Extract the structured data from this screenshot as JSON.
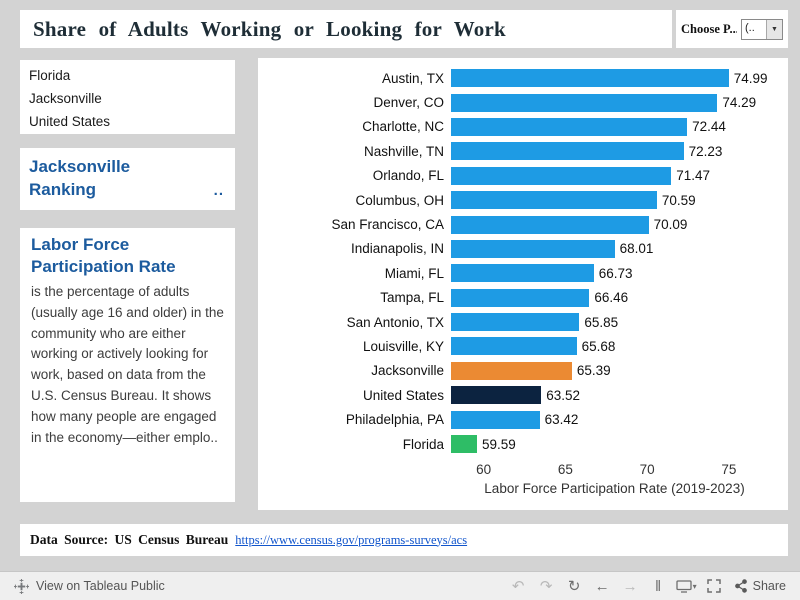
{
  "header": {
    "title": "Share of Adults Working or Looking for Work",
    "parameter": {
      "label": "Choose P...",
      "value": "(.."
    }
  },
  "sidebar": {
    "list_items": [
      "Florida",
      "Jacksonville",
      "United States"
    ],
    "ranking_title": "Jacksonville Ranking",
    "ranking_more": "..",
    "definition": {
      "title": "Labor Force Participation Rate",
      "body": "is the percentage of adults (usually age 16 and older) in the community who are either working or actively looking for work, based on data from the U.S. Census Bureau. It shows how many people are engaged in the economy—either emplo.."
    }
  },
  "chart_data": {
    "type": "bar",
    "orientation": "horizontal",
    "xlabel": "Labor Force Participation Rate (2019-2023)",
    "xlim": [
      58,
      78
    ],
    "xticks": [
      60,
      65,
      70,
      75
    ],
    "grid": false,
    "rows": [
      {
        "label": "Austin, TX",
        "value": 74.99,
        "color": "blue"
      },
      {
        "label": "Denver, CO",
        "value": 74.29,
        "color": "blue"
      },
      {
        "label": "Charlotte, NC",
        "value": 72.44,
        "color": "blue"
      },
      {
        "label": "Nashville, TN",
        "value": 72.23,
        "color": "blue"
      },
      {
        "label": "Orlando, FL",
        "value": 71.47,
        "color": "blue"
      },
      {
        "label": "Columbus, OH",
        "value": 70.59,
        "color": "blue"
      },
      {
        "label": "San Francisco, CA",
        "value": 70.09,
        "color": "blue"
      },
      {
        "label": "Indianapolis, IN",
        "value": 68.01,
        "color": "blue"
      },
      {
        "label": "Miami, FL",
        "value": 66.73,
        "color": "blue"
      },
      {
        "label": "Tampa, FL",
        "value": 66.46,
        "color": "blue"
      },
      {
        "label": "San Antonio, TX",
        "value": 65.85,
        "color": "blue"
      },
      {
        "label": "Louisville, KY",
        "value": 65.68,
        "color": "blue"
      },
      {
        "label": "Jacksonville",
        "value": 65.39,
        "color": "orange"
      },
      {
        "label": "United States",
        "value": 63.52,
        "color": "navy"
      },
      {
        "label": "Philadelphia, PA",
        "value": 63.42,
        "color": "blue"
      },
      {
        "label": "Florida",
        "value": 59.59,
        "color": "green"
      }
    ],
    "palette": {
      "blue": "#1e9be4",
      "orange": "#eb8a33",
      "navy": "#0c2340",
      "green": "#2ebd66"
    }
  },
  "footer": {
    "source_label": "Data Source: US Census Bureau",
    "source_link": "https://www.census.gov/programs-surveys/acs"
  },
  "toolbar": {
    "view_label": "View on Tableau Public",
    "share_label": "Share",
    "icons": {
      "logo": "tableau-logo",
      "undo": "↶",
      "redo": "↷",
      "replay": "↻",
      "back": "←",
      "forward": "→",
      "pause": "‖",
      "download": "monitor-with-caret",
      "fullscreen": "corner-brackets",
      "share": "share-nodes"
    }
  },
  "colors": {
    "page_background": "#d3d3d3",
    "panel_background": "#ffffff",
    "accent_text_blue": "#1c5b9e",
    "link_blue": "#1155cc"
  }
}
